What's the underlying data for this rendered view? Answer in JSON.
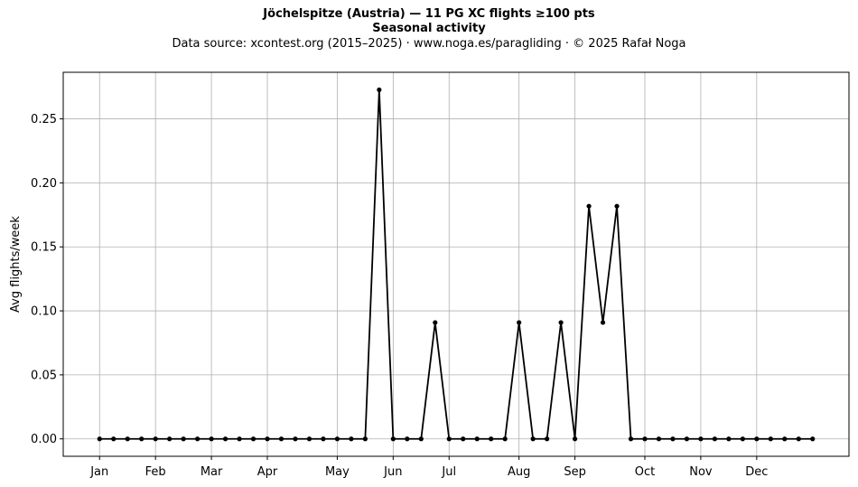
{
  "header": {
    "title": "Jöchelspitze (Austria)  —  11 PG XC flights ≥100 pts",
    "subtitle": "Seasonal activity",
    "source": "Data source: xcontest.org (2015–2025)  ·  www.noga.es/paragliding  ·  © 2025 Rafał Noga"
  },
  "chart_data": {
    "type": "line",
    "title": "Jöchelspitze (Austria)  —  11 PG XC flights ≥100 pts",
    "subtitle": "Seasonal activity",
    "xlabel": "",
    "ylabel": "Avg flights/week",
    "x": [
      1,
      2,
      3,
      4,
      5,
      6,
      7,
      8,
      9,
      10,
      11,
      12,
      13,
      14,
      15,
      16,
      17,
      18,
      19,
      20,
      21,
      22,
      23,
      24,
      25,
      26,
      27,
      28,
      29,
      30,
      31,
      32,
      33,
      34,
      35,
      36,
      37,
      38,
      39,
      40,
      41,
      42,
      43,
      44,
      45,
      46,
      47,
      48,
      49,
      50,
      51,
      52
    ],
    "series": [
      {
        "color": "#000000",
        "values": [
          0,
          0,
          0,
          0,
          0,
          0,
          0,
          0,
          0,
          0,
          0,
          0,
          0,
          0,
          0,
          0,
          0,
          0,
          0,
          0,
          0.2727,
          0,
          0,
          0,
          0.0909,
          0,
          0,
          0,
          0,
          0,
          0.0909,
          0,
          0,
          0.0909,
          0,
          0.1818,
          0.0909,
          0.1818,
          0,
          0,
          0,
          0,
          0,
          0,
          0,
          0,
          0,
          0,
          0,
          0,
          0,
          0
        ]
      }
    ],
    "xticks": [
      {
        "label": "Jan",
        "x": 1
      },
      {
        "label": "Feb",
        "x": 5
      },
      {
        "label": "Mar",
        "x": 9
      },
      {
        "label": "Apr",
        "x": 13
      },
      {
        "label": "May",
        "x": 18
      },
      {
        "label": "Jun",
        "x": 22
      },
      {
        "label": "Jul",
        "x": 26
      },
      {
        "label": "Aug",
        "x": 31
      },
      {
        "label": "Sep",
        "x": 35
      },
      {
        "label": "Oct",
        "x": 40
      },
      {
        "label": "Nov",
        "x": 44
      },
      {
        "label": "Dec",
        "x": 48
      }
    ],
    "yticks": [
      0.0,
      0.05,
      0.1,
      0.15,
      0.2,
      0.25
    ],
    "ytick_labels": [
      "0.00",
      "0.05",
      "0.10",
      "0.15",
      "0.20",
      "0.25"
    ],
    "xlim": [
      -1.6,
      54.6
    ],
    "ylim": [
      -0.0136,
      0.2864
    ],
    "grid": true,
    "legend": "none"
  }
}
